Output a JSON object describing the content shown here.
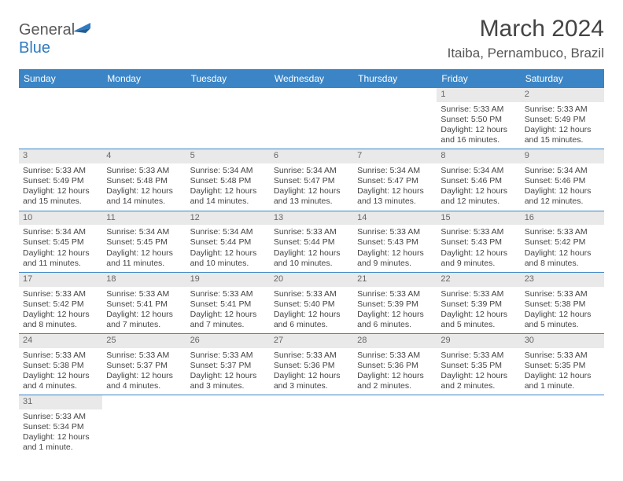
{
  "logo": {
    "word1": "General",
    "word2": "Blue"
  },
  "title": "March 2024",
  "subtitle": "Itaiba, Pernambuco, Brazil",
  "colors": {
    "headerBg": "#3b85c6",
    "headerText": "#ffffff",
    "dayNumBg": "#e9e9e9",
    "dayNumText": "#666666",
    "cellBorder": "#3b85c6",
    "bodyText": "#444444",
    "pageBg": "#ffffff"
  },
  "dayHeaders": [
    "Sunday",
    "Monday",
    "Tuesday",
    "Wednesday",
    "Thursday",
    "Friday",
    "Saturday"
  ],
  "weeks": [
    [
      null,
      null,
      null,
      null,
      null,
      {
        "n": "1",
        "sr": "5:33 AM",
        "ss": "5:50 PM",
        "dl": "12 hours and 16 minutes."
      },
      {
        "n": "2",
        "sr": "5:33 AM",
        "ss": "5:49 PM",
        "dl": "12 hours and 15 minutes."
      }
    ],
    [
      {
        "n": "3",
        "sr": "5:33 AM",
        "ss": "5:49 PM",
        "dl": "12 hours and 15 minutes."
      },
      {
        "n": "4",
        "sr": "5:33 AM",
        "ss": "5:48 PM",
        "dl": "12 hours and 14 minutes."
      },
      {
        "n": "5",
        "sr": "5:34 AM",
        "ss": "5:48 PM",
        "dl": "12 hours and 14 minutes."
      },
      {
        "n": "6",
        "sr": "5:34 AM",
        "ss": "5:47 PM",
        "dl": "12 hours and 13 minutes."
      },
      {
        "n": "7",
        "sr": "5:34 AM",
        "ss": "5:47 PM",
        "dl": "12 hours and 13 minutes."
      },
      {
        "n": "8",
        "sr": "5:34 AM",
        "ss": "5:46 PM",
        "dl": "12 hours and 12 minutes."
      },
      {
        "n": "9",
        "sr": "5:34 AM",
        "ss": "5:46 PM",
        "dl": "12 hours and 12 minutes."
      }
    ],
    [
      {
        "n": "10",
        "sr": "5:34 AM",
        "ss": "5:45 PM",
        "dl": "12 hours and 11 minutes."
      },
      {
        "n": "11",
        "sr": "5:34 AM",
        "ss": "5:45 PM",
        "dl": "12 hours and 11 minutes."
      },
      {
        "n": "12",
        "sr": "5:34 AM",
        "ss": "5:44 PM",
        "dl": "12 hours and 10 minutes."
      },
      {
        "n": "13",
        "sr": "5:33 AM",
        "ss": "5:44 PM",
        "dl": "12 hours and 10 minutes."
      },
      {
        "n": "14",
        "sr": "5:33 AM",
        "ss": "5:43 PM",
        "dl": "12 hours and 9 minutes."
      },
      {
        "n": "15",
        "sr": "5:33 AM",
        "ss": "5:43 PM",
        "dl": "12 hours and 9 minutes."
      },
      {
        "n": "16",
        "sr": "5:33 AM",
        "ss": "5:42 PM",
        "dl": "12 hours and 8 minutes."
      }
    ],
    [
      {
        "n": "17",
        "sr": "5:33 AM",
        "ss": "5:42 PM",
        "dl": "12 hours and 8 minutes."
      },
      {
        "n": "18",
        "sr": "5:33 AM",
        "ss": "5:41 PM",
        "dl": "12 hours and 7 minutes."
      },
      {
        "n": "19",
        "sr": "5:33 AM",
        "ss": "5:41 PM",
        "dl": "12 hours and 7 minutes."
      },
      {
        "n": "20",
        "sr": "5:33 AM",
        "ss": "5:40 PM",
        "dl": "12 hours and 6 minutes."
      },
      {
        "n": "21",
        "sr": "5:33 AM",
        "ss": "5:39 PM",
        "dl": "12 hours and 6 minutes."
      },
      {
        "n": "22",
        "sr": "5:33 AM",
        "ss": "5:39 PM",
        "dl": "12 hours and 5 minutes."
      },
      {
        "n": "23",
        "sr": "5:33 AM",
        "ss": "5:38 PM",
        "dl": "12 hours and 5 minutes."
      }
    ],
    [
      {
        "n": "24",
        "sr": "5:33 AM",
        "ss": "5:38 PM",
        "dl": "12 hours and 4 minutes."
      },
      {
        "n": "25",
        "sr": "5:33 AM",
        "ss": "5:37 PM",
        "dl": "12 hours and 4 minutes."
      },
      {
        "n": "26",
        "sr": "5:33 AM",
        "ss": "5:37 PM",
        "dl": "12 hours and 3 minutes."
      },
      {
        "n": "27",
        "sr": "5:33 AM",
        "ss": "5:36 PM",
        "dl": "12 hours and 3 minutes."
      },
      {
        "n": "28",
        "sr": "5:33 AM",
        "ss": "5:36 PM",
        "dl": "12 hours and 2 minutes."
      },
      {
        "n": "29",
        "sr": "5:33 AM",
        "ss": "5:35 PM",
        "dl": "12 hours and 2 minutes."
      },
      {
        "n": "30",
        "sr": "5:33 AM",
        "ss": "5:35 PM",
        "dl": "12 hours and 1 minute."
      }
    ],
    [
      {
        "n": "31",
        "sr": "5:33 AM",
        "ss": "5:34 PM",
        "dl": "12 hours and 1 minute."
      },
      null,
      null,
      null,
      null,
      null,
      null
    ]
  ],
  "labels": {
    "sunrise": "Sunrise: ",
    "sunset": "Sunset: ",
    "daylight": "Daylight: "
  }
}
